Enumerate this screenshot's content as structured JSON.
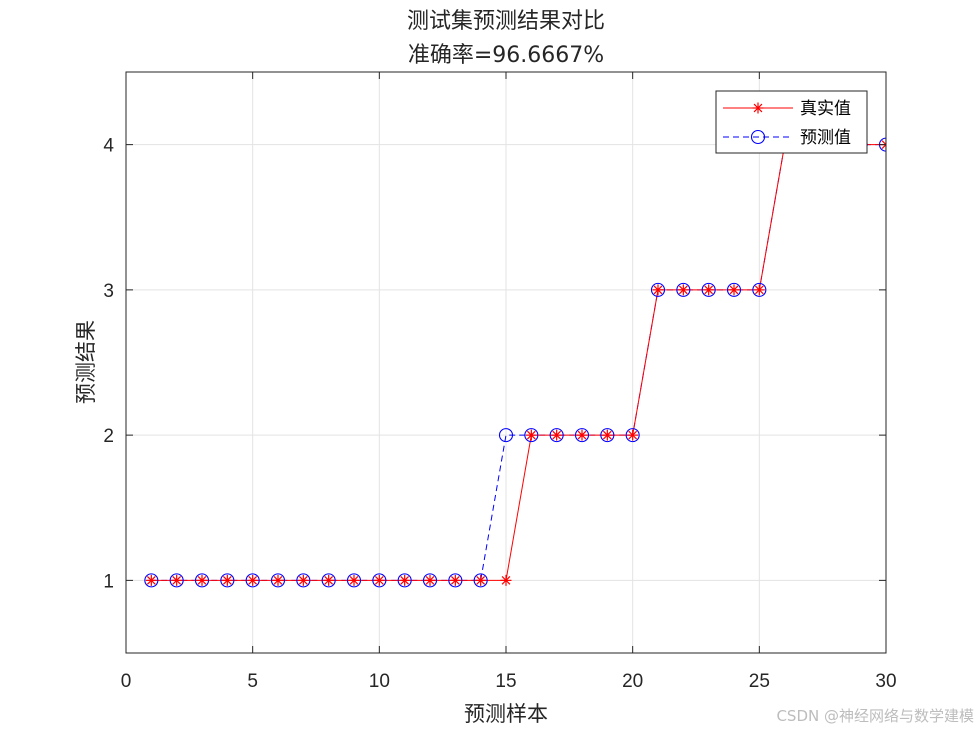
{
  "chart_data": {
    "type": "line",
    "title": "测试集预测结果对比",
    "subtitle": "准确率=96.6667%",
    "xlabel": "预测样本",
    "ylabel": "预测结果",
    "xlim": [
      0,
      30
    ],
    "ylim": [
      0.5,
      4.5
    ],
    "xticks": [
      0,
      5,
      10,
      15,
      20,
      25,
      30
    ],
    "yticks": [
      1,
      2,
      3,
      4
    ],
    "grid": true,
    "legend_position": "top-right",
    "x": [
      1,
      2,
      3,
      4,
      5,
      6,
      7,
      8,
      9,
      10,
      11,
      12,
      13,
      14,
      15,
      16,
      17,
      18,
      19,
      20,
      21,
      22,
      23,
      24,
      25,
      26,
      27,
      28,
      29,
      30
    ],
    "series": [
      {
        "name": "真实值",
        "color": "#ff0000",
        "line_style": "solid",
        "marker": "asterisk",
        "values": [
          1,
          1,
          1,
          1,
          1,
          1,
          1,
          1,
          1,
          1,
          1,
          1,
          1,
          1,
          1,
          2,
          2,
          2,
          2,
          2,
          3,
          3,
          3,
          3,
          3,
          4,
          4,
          4,
          4,
          4
        ]
      },
      {
        "name": "预测值",
        "color": "#0000ff",
        "line_style": "dashed",
        "marker": "circle",
        "values": [
          1,
          1,
          1,
          1,
          1,
          1,
          1,
          1,
          1,
          1,
          1,
          1,
          1,
          1,
          2,
          2,
          2,
          2,
          2,
          2,
          3,
          3,
          3,
          3,
          3,
          4,
          4,
          4,
          4,
          4
        ]
      }
    ]
  },
  "watermark": "CSDN @神经网络与数学建模"
}
